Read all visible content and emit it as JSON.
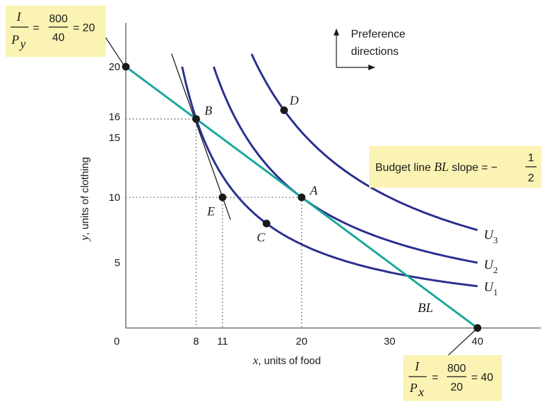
{
  "colors": {
    "budget_line": "#1aa899",
    "indifference": "#2a2f8f",
    "tangent": "#1a1a1a",
    "axis": "#777777",
    "box_fill": "#fbf3b3",
    "point": "#1a1a1a"
  },
  "chart_data": {
    "type": "line",
    "xlabel_var": "x",
    "xlabel": ", units of food",
    "ylabel_var": "y",
    "ylabel": ", units of clothing",
    "xlim": [
      0,
      47
    ],
    "ylim": [
      0,
      24.5
    ],
    "x_ticks": [
      0,
      8,
      11,
      20,
      30,
      40
    ],
    "y_ticks": [
      5,
      10,
      15,
      16,
      20
    ],
    "series": [
      {
        "name": "BL",
        "kind": "budget",
        "x": [
          0,
          40
        ],
        "y": [
          20,
          0
        ]
      },
      {
        "name": "U",
        "sub": "1",
        "kind": "indifference",
        "constant": 128,
        "x_range": [
          6.4,
          40
        ]
      },
      {
        "name": "U",
        "sub": "2",
        "kind": "indifference",
        "constant": 200,
        "x_range": [
          10,
          40
        ]
      },
      {
        "name": "U",
        "sub": "3",
        "kind": "indifference",
        "constant": 300,
        "x_range": [
          14.3,
          40
        ]
      }
    ],
    "tangent_line": {
      "x": [
        5.2,
        11.9
      ],
      "y": [
        21.0,
        8.3
      ]
    },
    "points": [
      {
        "label": "A",
        "x": 20,
        "y": 10
      },
      {
        "label": "B",
        "x": 8,
        "y": 16
      },
      {
        "label": "C",
        "x": 16,
        "y": 8
      },
      {
        "label": "D",
        "x": 18,
        "y": 16.67
      },
      {
        "label": "E",
        "x": 11,
        "y": 10
      },
      {
        "label": "",
        "x": 0,
        "y": 20
      },
      {
        "label": "",
        "x": 40,
        "y": 0
      }
    ],
    "guides": [
      {
        "x": 8,
        "y": 16
      },
      {
        "x": 11,
        "y": 10
      },
      {
        "x": 20,
        "y": 10
      }
    ]
  },
  "annotations": {
    "preference": {
      "line1": "Preference",
      "line2": "directions"
    },
    "slope_box": {
      "text": "Budget line ",
      "bl": "BL",
      "text2": " slope = −",
      "num": "1",
      "den": "2"
    },
    "py_box": {
      "I": "I",
      "P": "P",
      "sub": "y",
      "eq1": "=",
      "num": "800",
      "den": "40",
      "eq2": "= 20"
    },
    "px_box": {
      "I": "I",
      "P": "P",
      "sub": "x",
      "eq1": "=",
      "num": "800",
      "den": "20",
      "eq2": "= 40"
    }
  }
}
